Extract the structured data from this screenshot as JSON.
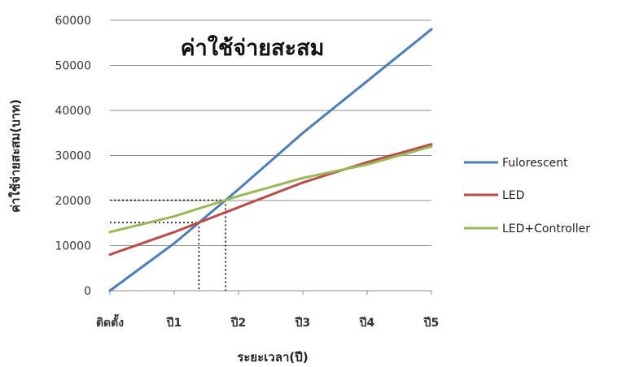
{
  "chart_data": {
    "type": "line",
    "title": "ค่าใช้จ่ายสะสม",
    "xlabel": "ระยะเวลา(ปี)",
    "ylabel": "ค่าใช้จ่ายสะสม(บาท)",
    "categories": [
      "ติดตั้ง",
      "ปี1",
      "ปี2",
      "ปี3",
      "ปี4",
      "ปี5"
    ],
    "ylim": [
      0,
      60000
    ],
    "yticks": [
      0,
      10000,
      20000,
      30000,
      40000,
      50000,
      60000
    ],
    "grid": true,
    "legend_position": "right",
    "series": [
      {
        "name": "Fulorescent",
        "color": "#4a7ebb",
        "values": [
          0,
          10500,
          22500,
          35000,
          46500,
          58000
        ]
      },
      {
        "name": "LED",
        "color": "#be4b48",
        "values": [
          8000,
          13000,
          18500,
          24000,
          28500,
          32500
        ]
      },
      {
        "name": "LED+Controller",
        "color": "#98b954",
        "values": [
          13000,
          16500,
          21000,
          25000,
          28000,
          32000
        ]
      }
    ]
  }
}
